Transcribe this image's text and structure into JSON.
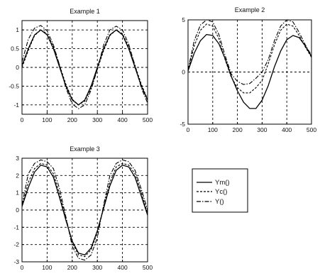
{
  "chart_data": [
    {
      "type": "line",
      "title": "Example 1",
      "xlim": [
        0,
        500
      ],
      "ylim": [
        -1.25,
        1.25
      ],
      "xticks": [
        0,
        100,
        200,
        300,
        400,
        500
      ],
      "yticks": [
        1,
        0.5,
        0,
        -0.5,
        -1
      ],
      "ytick_labels": [
        "1",
        "0.5",
        "0",
        "-0.5",
        "-1"
      ],
      "grid": true,
      "series": [
        {
          "name": "Ym()",
          "style": "solid",
          "x": [
            0,
            25,
            50,
            75,
            100,
            125,
            150,
            175,
            200,
            225,
            250,
            275,
            300,
            325,
            350,
            375,
            400,
            425,
            450,
            475,
            500
          ],
          "y": [
            0.05,
            0.5,
            0.87,
            1.0,
            0.87,
            0.5,
            0.0,
            -0.5,
            -0.87,
            -1.0,
            -0.87,
            -0.5,
            0.0,
            0.5,
            0.87,
            1.0,
            0.87,
            0.5,
            0.0,
            -0.5,
            -0.87
          ]
        },
        {
          "name": "Yc()",
          "style": "dashed",
          "x": [
            0,
            25,
            50,
            75,
            100,
            125,
            150,
            175,
            200,
            225,
            250,
            275,
            300,
            325,
            350,
            375,
            400,
            425,
            450,
            475,
            500
          ],
          "y": [
            0.0,
            0.45,
            0.85,
            1.0,
            0.9,
            0.55,
            0.05,
            -0.45,
            -0.85,
            -1.0,
            -0.9,
            -0.55,
            -0.05,
            0.45,
            0.85,
            1.0,
            0.9,
            0.55,
            0.05,
            -0.45,
            -0.85
          ]
        },
        {
          "name": "Y()",
          "style": "dashdot",
          "x": [
            0,
            25,
            50,
            75,
            100,
            125,
            150,
            175,
            200,
            225,
            250,
            275,
            300,
            325,
            350,
            375,
            400,
            425,
            450,
            475,
            500
          ],
          "y": [
            0.15,
            0.75,
            1.05,
            1.12,
            0.98,
            0.6,
            0.05,
            -0.55,
            -0.98,
            -1.1,
            -1.0,
            -0.6,
            -0.05,
            0.6,
            1.0,
            1.1,
            1.0,
            0.62,
            0.05,
            -0.55,
            -0.95
          ]
        }
      ]
    },
    {
      "type": "line",
      "title": "Example 2",
      "xlim": [
        0,
        500
      ],
      "ylim": [
        -5,
        5
      ],
      "xticks": [
        0,
        100,
        200,
        300,
        400,
        500
      ],
      "yticks": [
        5,
        0,
        -5
      ],
      "ytick_labels": [
        "5",
        "0",
        "-5"
      ],
      "grid": true,
      "series": [
        {
          "name": "Ym()",
          "style": "solid",
          "x": [
            0,
            25,
            50,
            75,
            100,
            125,
            150,
            175,
            200,
            225,
            250,
            275,
            300,
            325,
            350,
            375,
            400,
            425,
            450,
            475,
            500
          ],
          "y": [
            0.1,
            1.8,
            3.0,
            3.6,
            3.5,
            2.7,
            1.3,
            -0.4,
            -1.8,
            -2.9,
            -3.5,
            -3.5,
            -2.7,
            -1.3,
            0.5,
            2.0,
            3.1,
            3.5,
            3.3,
            2.5,
            1.5
          ]
        },
        {
          "name": "Yc()",
          "style": "dashed",
          "x": [
            0,
            25,
            50,
            75,
            100,
            125,
            150,
            175,
            200,
            225,
            250,
            275,
            300,
            325,
            350,
            375,
            400,
            425,
            450,
            475,
            500
          ],
          "y": [
            0.1,
            2.5,
            4.0,
            4.6,
            4.4,
            3.2,
            1.2,
            -0.5,
            -1.5,
            -2.0,
            -2.0,
            -1.5,
            -0.8,
            0.8,
            2.6,
            4.0,
            4.6,
            4.4,
            3.5,
            2.4,
            1.4
          ]
        },
        {
          "name": "Y()",
          "style": "dashdot",
          "x": [
            0,
            25,
            50,
            75,
            100,
            125,
            150,
            175,
            200,
            225,
            250,
            275,
            300,
            325,
            350,
            375,
            400,
            425,
            450,
            475,
            500
          ],
          "y": [
            0.2,
            3.0,
            4.5,
            5.0,
            4.8,
            3.6,
            1.6,
            -0.2,
            -0.9,
            -1.2,
            -1.1,
            -0.6,
            0.0,
            1.2,
            3.0,
            4.4,
            5.0,
            4.8,
            3.8,
            2.6,
            1.6
          ]
        }
      ]
    },
    {
      "type": "line",
      "title": "Example 3",
      "xlim": [
        0,
        500
      ],
      "ylim": [
        -3,
        3
      ],
      "xticks": [
        0,
        100,
        200,
        300,
        400,
        500
      ],
      "yticks": [
        3,
        2,
        1,
        0,
        -1,
        -2,
        -3
      ],
      "ytick_labels": [
        "3",
        "2",
        "1",
        "0",
        "-1",
        "-2",
        "-3"
      ],
      "grid": true,
      "series": [
        {
          "name": "Ym()",
          "style": "solid",
          "x": [
            0,
            25,
            50,
            75,
            100,
            125,
            150,
            175,
            200,
            225,
            250,
            275,
            300,
            325,
            350,
            375,
            400,
            425,
            450,
            475,
            500
          ],
          "y": [
            0.2,
            1.3,
            2.2,
            2.6,
            2.5,
            1.9,
            0.7,
            -0.6,
            -1.8,
            -2.5,
            -2.6,
            -2.2,
            -1.2,
            0.1,
            1.4,
            2.3,
            2.6,
            2.5,
            1.9,
            0.8,
            -0.3
          ]
        },
        {
          "name": "Yc()",
          "style": "dashed",
          "x": [
            0,
            25,
            50,
            75,
            100,
            125,
            150,
            175,
            200,
            225,
            250,
            275,
            300,
            325,
            350,
            375,
            400,
            425,
            450,
            475,
            500
          ],
          "y": [
            0.2,
            1.6,
            2.4,
            2.7,
            2.6,
            2.1,
            0.9,
            -0.5,
            -1.9,
            -2.6,
            -2.7,
            -2.3,
            -1.3,
            0.2,
            1.6,
            2.5,
            2.7,
            2.6,
            2.1,
            1.0,
            -0.2
          ]
        },
        {
          "name": "Y()",
          "style": "dashdot",
          "x": [
            0,
            25,
            50,
            75,
            100,
            125,
            150,
            175,
            200,
            225,
            250,
            275,
            300,
            325,
            350,
            375,
            400,
            425,
            450,
            475,
            500
          ],
          "y": [
            0.3,
            2.1,
            2.7,
            2.9,
            2.8,
            2.4,
            1.2,
            -0.4,
            -2.1,
            -2.8,
            -2.9,
            -2.6,
            -1.6,
            0.3,
            2.0,
            2.7,
            2.9,
            2.8,
            2.3,
            1.2,
            0.0
          ]
        }
      ]
    }
  ],
  "legend": {
    "entries": [
      {
        "label": "Ym()",
        "style": "solid"
      },
      {
        "label": "Yc()",
        "style": "dashed"
      },
      {
        "label": "Y()",
        "style": "dashdot"
      }
    ]
  }
}
